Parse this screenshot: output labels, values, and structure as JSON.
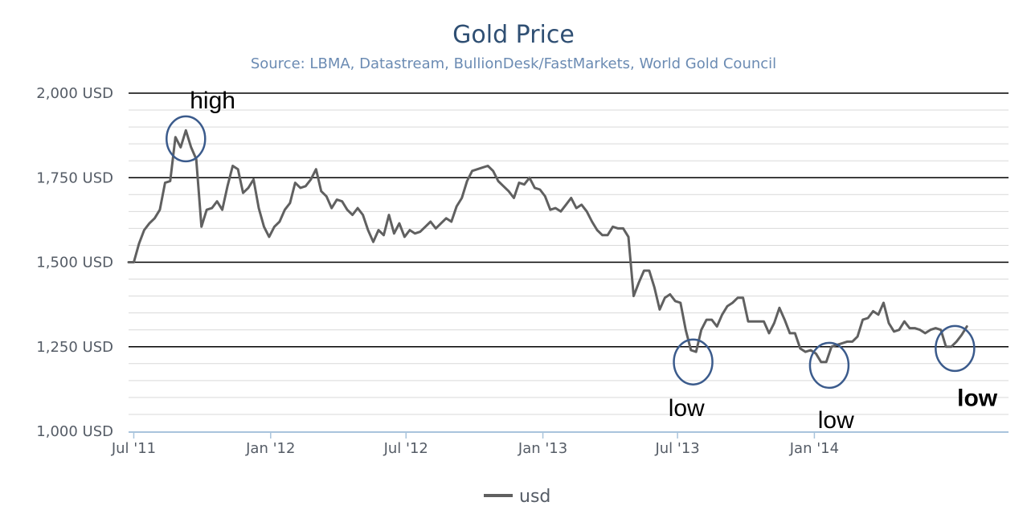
{
  "chart_data": {
    "type": "line",
    "title": "Gold Price",
    "subtitle": "Source: LBMA, Datastream, BullionDesk/FastMarkets, World Gold Council",
    "ylim": [
      1000,
      2000
    ],
    "y_ticks": [
      {
        "value": 1000,
        "label": "1,000 USD"
      },
      {
        "value": 1250,
        "label": "1,250 USD"
      },
      {
        "value": 1500,
        "label": "1,500 USD"
      },
      {
        "value": 1750,
        "label": "1,750 USD"
      },
      {
        "value": 2000,
        "label": "2,000 USD"
      }
    ],
    "x_range": [
      "2011-06-24",
      "2014-09-19"
    ],
    "x_ticks": [
      {
        "date": "2011-07-01",
        "label": "Jul '11"
      },
      {
        "date": "2012-01-01",
        "label": "Jan '12"
      },
      {
        "date": "2012-07-01",
        "label": "Jul '12"
      },
      {
        "date": "2013-01-01",
        "label": "Jan '13"
      },
      {
        "date": "2013-07-01",
        "label": "Jul '13"
      },
      {
        "date": "2014-01-01",
        "label": "Jan '14"
      }
    ],
    "grid": true,
    "legend": "bottom-center",
    "series": [
      {
        "name": "usd",
        "color": "#606060",
        "points": [
          [
            "2011-06-24",
            1500
          ],
          [
            "2011-07-01",
            1500
          ],
          [
            "2011-07-08",
            1555
          ],
          [
            "2011-07-15",
            1595
          ],
          [
            "2011-07-22",
            1615
          ],
          [
            "2011-07-29",
            1630
          ],
          [
            "2011-08-05",
            1655
          ],
          [
            "2011-08-12",
            1735
          ],
          [
            "2011-08-19",
            1740
          ],
          [
            "2011-08-26",
            1870
          ],
          [
            "2011-09-02",
            1840
          ],
          [
            "2011-09-09",
            1890
          ],
          [
            "2011-09-16",
            1840
          ],
          [
            "2011-09-23",
            1805
          ],
          [
            "2011-09-30",
            1605
          ],
          [
            "2011-10-07",
            1655
          ],
          [
            "2011-10-14",
            1660
          ],
          [
            "2011-10-21",
            1680
          ],
          [
            "2011-10-28",
            1655
          ],
          [
            "2011-11-04",
            1725
          ],
          [
            "2011-11-11",
            1785
          ],
          [
            "2011-11-18",
            1775
          ],
          [
            "2011-11-25",
            1705
          ],
          [
            "2011-12-02",
            1720
          ],
          [
            "2011-12-09",
            1745
          ],
          [
            "2011-12-16",
            1660
          ],
          [
            "2011-12-23",
            1605
          ],
          [
            "2011-12-30",
            1575
          ],
          [
            "2012-01-06",
            1605
          ],
          [
            "2012-01-13",
            1620
          ],
          [
            "2012-01-20",
            1655
          ],
          [
            "2012-01-27",
            1675
          ],
          [
            "2012-02-03",
            1735
          ],
          [
            "2012-02-10",
            1720
          ],
          [
            "2012-02-17",
            1725
          ],
          [
            "2012-02-24",
            1745
          ],
          [
            "2012-03-02",
            1775
          ],
          [
            "2012-03-09",
            1710
          ],
          [
            "2012-03-16",
            1695
          ],
          [
            "2012-03-23",
            1660
          ],
          [
            "2012-03-30",
            1685
          ],
          [
            "2012-04-06",
            1680
          ],
          [
            "2012-04-13",
            1655
          ],
          [
            "2012-04-20",
            1640
          ],
          [
            "2012-04-27",
            1660
          ],
          [
            "2012-05-04",
            1640
          ],
          [
            "2012-05-11",
            1595
          ],
          [
            "2012-05-18",
            1560
          ],
          [
            "2012-05-25",
            1595
          ],
          [
            "2012-06-01",
            1580
          ],
          [
            "2012-06-08",
            1640
          ],
          [
            "2012-06-15",
            1585
          ],
          [
            "2012-06-22",
            1615
          ],
          [
            "2012-06-29",
            1575
          ],
          [
            "2012-07-06",
            1595
          ],
          [
            "2012-07-13",
            1585
          ],
          [
            "2012-07-20",
            1590
          ],
          [
            "2012-07-27",
            1605
          ],
          [
            "2012-08-03",
            1620
          ],
          [
            "2012-08-10",
            1600
          ],
          [
            "2012-08-17",
            1615
          ],
          [
            "2012-08-24",
            1630
          ],
          [
            "2012-08-31",
            1620
          ],
          [
            "2012-09-07",
            1665
          ],
          [
            "2012-09-14",
            1690
          ],
          [
            "2012-09-21",
            1740
          ],
          [
            "2012-09-28",
            1770
          ],
          [
            "2012-10-05",
            1775
          ],
          [
            "2012-10-12",
            1780
          ],
          [
            "2012-10-19",
            1785
          ],
          [
            "2012-10-26",
            1770
          ],
          [
            "2012-11-02",
            1740
          ],
          [
            "2012-11-09",
            1725
          ],
          [
            "2012-11-16",
            1710
          ],
          [
            "2012-11-23",
            1690
          ],
          [
            "2012-11-30",
            1735
          ],
          [
            "2012-12-07",
            1730
          ],
          [
            "2012-12-14",
            1750
          ],
          [
            "2012-12-21",
            1720
          ],
          [
            "2012-12-28",
            1715
          ],
          [
            "2013-01-04",
            1695
          ],
          [
            "2013-01-11",
            1655
          ],
          [
            "2013-01-18",
            1660
          ],
          [
            "2013-01-25",
            1650
          ],
          [
            "2013-02-01",
            1670
          ],
          [
            "2013-02-08",
            1690
          ],
          [
            "2013-02-15",
            1660
          ],
          [
            "2013-02-22",
            1670
          ],
          [
            "2013-03-01",
            1650
          ],
          [
            "2013-03-08",
            1620
          ],
          [
            "2013-03-15",
            1595
          ],
          [
            "2013-03-22",
            1580
          ],
          [
            "2013-03-29",
            1580
          ],
          [
            "2013-04-05",
            1605
          ],
          [
            "2013-04-12",
            1600
          ],
          [
            "2013-04-19",
            1600
          ],
          [
            "2013-04-26",
            1575
          ],
          [
            "2013-05-03",
            1400
          ],
          [
            "2013-05-10",
            1440
          ],
          [
            "2013-05-17",
            1475
          ],
          [
            "2013-05-24",
            1475
          ],
          [
            "2013-05-31",
            1425
          ],
          [
            "2013-06-07",
            1360
          ],
          [
            "2013-06-14",
            1395
          ],
          [
            "2013-06-21",
            1405
          ],
          [
            "2013-06-28",
            1385
          ],
          [
            "2013-07-05",
            1380
          ],
          [
            "2013-07-12",
            1300
          ],
          [
            "2013-07-19",
            1240
          ],
          [
            "2013-07-26",
            1235
          ],
          [
            "2013-08-02",
            1300
          ],
          [
            "2013-08-09",
            1330
          ],
          [
            "2013-08-16",
            1330
          ],
          [
            "2013-08-23",
            1310
          ],
          [
            "2013-08-30",
            1345
          ],
          [
            "2013-09-06",
            1370
          ],
          [
            "2013-09-13",
            1380
          ],
          [
            "2013-09-20",
            1395
          ],
          [
            "2013-09-27",
            1395
          ],
          [
            "2013-10-04",
            1325
          ],
          [
            "2013-10-11",
            1325
          ],
          [
            "2013-10-18",
            1325
          ],
          [
            "2013-10-25",
            1325
          ],
          [
            "2013-11-01",
            1290
          ],
          [
            "2013-11-08",
            1320
          ],
          [
            "2013-11-15",
            1365
          ],
          [
            "2013-11-22",
            1330
          ],
          [
            "2013-11-29",
            1290
          ],
          [
            "2013-12-06",
            1290
          ],
          [
            "2013-12-13",
            1245
          ],
          [
            "2013-12-20",
            1235
          ],
          [
            "2013-12-27",
            1240
          ],
          [
            "2014-01-03",
            1230
          ],
          [
            "2014-01-10",
            1205
          ],
          [
            "2014-01-17",
            1205
          ],
          [
            "2014-01-24",
            1250
          ],
          [
            "2014-01-31",
            1255
          ],
          [
            "2014-02-07",
            1260
          ],
          [
            "2014-02-14",
            1265
          ],
          [
            "2014-02-21",
            1265
          ],
          [
            "2014-02-28",
            1280
          ],
          [
            "2014-03-07",
            1330
          ],
          [
            "2014-03-14",
            1335
          ],
          [
            "2014-03-21",
            1355
          ],
          [
            "2014-03-28",
            1345
          ],
          [
            "2014-04-04",
            1380
          ],
          [
            "2014-04-11",
            1320
          ],
          [
            "2014-04-18",
            1295
          ],
          [
            "2014-04-25",
            1300
          ],
          [
            "2014-05-02",
            1325
          ],
          [
            "2014-05-09",
            1305
          ],
          [
            "2014-05-16",
            1305
          ],
          [
            "2014-05-23",
            1300
          ],
          [
            "2014-05-30",
            1290
          ],
          [
            "2014-06-06",
            1300
          ],
          [
            "2014-06-13",
            1305
          ],
          [
            "2014-06-20",
            1300
          ],
          [
            "2014-06-27",
            1250
          ],
          [
            "2014-07-04",
            1250
          ],
          [
            "2014-07-11",
            1265
          ],
          [
            "2014-07-18",
            1285
          ],
          [
            "2014-07-25",
            1310
          ]
        ]
      }
    ],
    "annotations": [
      {
        "text": "high",
        "date": "2011-10-15",
        "value": 1955,
        "bold": false
      },
      {
        "text": "low",
        "date": "2013-07-13",
        "value": 1045,
        "bold": false
      },
      {
        "text": "low",
        "date": "2014-01-30",
        "value": 1010,
        "bold": false
      },
      {
        "text": "low",
        "date": "2014-08-08",
        "value": 1075,
        "bold": true
      }
    ],
    "highlight_circles": [
      {
        "date": "2011-09-09",
        "value": 1865
      },
      {
        "date": "2013-07-22",
        "value": 1205
      },
      {
        "date": "2014-01-21",
        "value": 1195
      },
      {
        "date": "2014-07-09",
        "value": 1245
      }
    ]
  }
}
